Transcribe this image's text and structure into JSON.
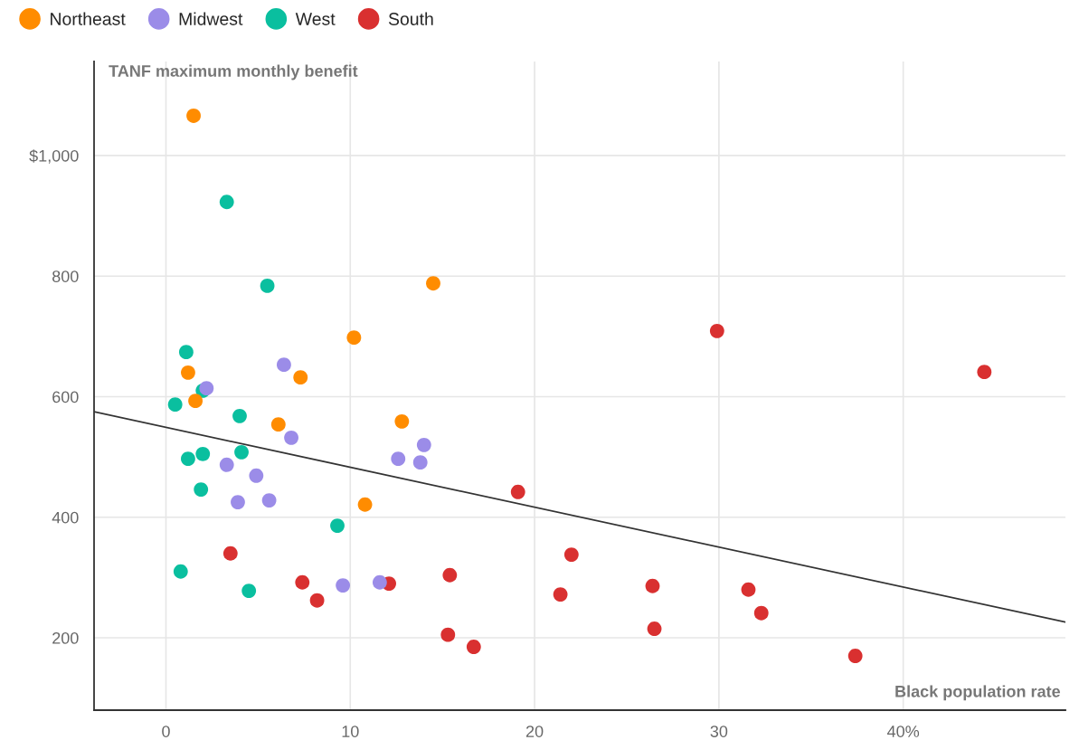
{
  "chart_data": {
    "type": "scatter",
    "xlabel": "Black population rate",
    "ylabel": "TANF maximum monthly benefit",
    "xlim": [
      -3.9,
      48.8
    ],
    "ylim": [
      80,
      1156
    ],
    "xticks": [
      0,
      10,
      20,
      30,
      {
        "value": 40,
        "label": "40%"
      }
    ],
    "yticks": [
      200,
      400,
      600,
      800,
      {
        "value": 1000,
        "label": "$1,000"
      }
    ],
    "grid": true,
    "legend": "top left",
    "marker": "circle",
    "series": [
      {
        "name": "Northeast",
        "color": "#ff8c00",
        "x": [
          1.5,
          14.5,
          10.2,
          1.2,
          7.3,
          1.6,
          12.8,
          6.1,
          10.8
        ],
        "values": [
          1066,
          788,
          698,
          640,
          632,
          593,
          559,
          554,
          421
        ]
      },
      {
        "name": "Midwest",
        "color": "#9b8ce8",
        "x": [
          6.4,
          2.2,
          6.8,
          14.0,
          12.6,
          13.8,
          3.3,
          4.9,
          3.9,
          5.6,
          9.6,
          11.6
        ],
        "values": [
          653,
          614,
          532,
          520,
          497,
          491,
          487,
          469,
          425,
          428,
          287,
          292
        ]
      },
      {
        "name": "West",
        "color": "#0abf9f",
        "x": [
          3.3,
          5.5,
          1.1,
          2.0,
          0.5,
          4.0,
          1.2,
          2.0,
          4.1,
          1.9,
          9.3,
          0.8,
          4.5
        ],
        "values": [
          923,
          784,
          674,
          610,
          587,
          568,
          497,
          505,
          508,
          446,
          386,
          310,
          278
        ]
      },
      {
        "name": "South",
        "color": "#d93030",
        "x": [
          44.4,
          29.9,
          19.1,
          22.0,
          3.5,
          15.4,
          7.4,
          12.1,
          8.2,
          21.4,
          26.4,
          31.6,
          32.3,
          15.3,
          16.7,
          26.5,
          37.4
        ],
        "values": [
          641,
          709,
          442,
          338,
          340,
          304,
          292,
          290,
          262,
          272,
          286,
          280,
          241,
          205,
          185,
          215,
          170
        ]
      },
      {
        "type": "line",
        "color": "#333333",
        "x": [
          -3.9,
          48.8
        ],
        "values": [
          575,
          226
        ],
        "marker": "none"
      }
    ]
  }
}
